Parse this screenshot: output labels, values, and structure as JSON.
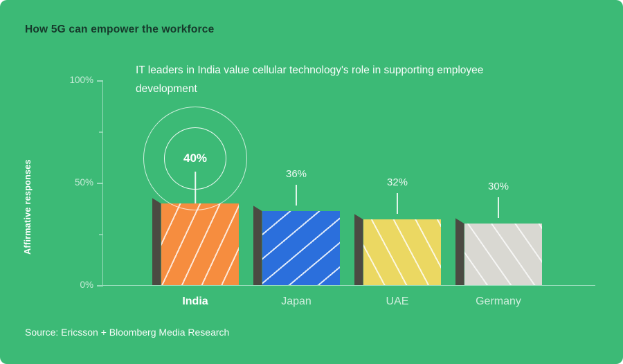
{
  "title": "How 5G can empower the workforce",
  "subtitle": "IT leaders in India value cellular technology's role in supporting employee development",
  "source": "Source: Ericsson + Bloomberg Media Research",
  "colors": {
    "background": "#3CBA76",
    "title_text": "#16392B",
    "bar_side": "#4B4A42",
    "axis_line": "#9BDDBD",
    "bars": [
      "#F68D3F",
      "#2B6FDC",
      "#EBD862",
      "#D9D8D2"
    ]
  },
  "chart_data": {
    "type": "bar",
    "categories": [
      "India",
      "Japan",
      "UAE",
      "Germany"
    ],
    "values": [
      40,
      36,
      32,
      30
    ],
    "value_labels": [
      "40%",
      "36%",
      "32%",
      "30%"
    ],
    "title": "IT leaders in India value cellular technology's role in supporting employee development",
    "xlabel": "",
    "ylabel": "Affirmative responses",
    "ylim": [
      0,
      100
    ],
    "yticks": [
      {
        "value": 100,
        "label": "100%"
      },
      {
        "value": 50,
        "label": "50%"
      },
      {
        "value": 0,
        "label": "0%"
      }
    ],
    "yticks_minor": [
      75,
      25
    ],
    "grid": false,
    "legend": false,
    "highlight_index": 0
  }
}
